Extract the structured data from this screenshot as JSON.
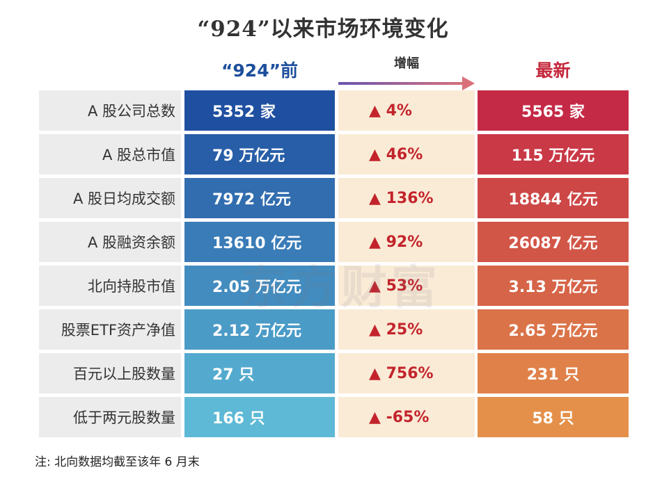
{
  "title": "“924”以来市场环境变化",
  "headers": {
    "before": "“924”前",
    "change": "增幅",
    "after": "最新"
  },
  "colors": {
    "before_top": "#1f4fa0",
    "before_bottom": "#5db9d6",
    "after_top": "#c42a45",
    "after_bottom": "#e4904a",
    "change_bg": "#faebd6",
    "change_text": "#c3242c",
    "label_bg": "#ececec",
    "arrow_start": "#6a55b0",
    "arrow_end": "#d9707a"
  },
  "watermark": "东方财富",
  "note": "注: 北向数据均截至该年 6 月末",
  "chart_data": {
    "type": "table",
    "title": "“924”以来市场环境变化",
    "columns": [
      "",
      "“924”前",
      "增幅",
      "最新"
    ],
    "rows": [
      {
        "label": "A 股公司总数",
        "before": "5352 家",
        "change": "▲ 4%",
        "after": "5565 家"
      },
      {
        "label": "A 股总市值",
        "before": "79 万亿元",
        "change": "▲ 46%",
        "after": "115 万亿元"
      },
      {
        "label": "A 股日均成交额",
        "before": "7972 亿元",
        "change": "▲ 136%",
        "after": "18844 亿元"
      },
      {
        "label": "A 股融资余额",
        "before": "13610 亿元",
        "change": "▲ 92%",
        "after": "26087 亿元"
      },
      {
        "label": "北向持股市值",
        "before": "2.05 万亿元",
        "change": "▲ 53%",
        "after": "3.13 万亿元"
      },
      {
        "label": "股票ETF资产净值",
        "before": "2.12 万亿元",
        "change": "▲ 25%",
        "after": "2.65 万亿元"
      },
      {
        "label": "百元以上股数量",
        "before": "27 只",
        "change": "▲ 756%",
        "after": "231 只"
      },
      {
        "label": "低于两元股数量",
        "before": "166 只",
        "change": "▲ -65%",
        "after": "58 只"
      }
    ]
  }
}
